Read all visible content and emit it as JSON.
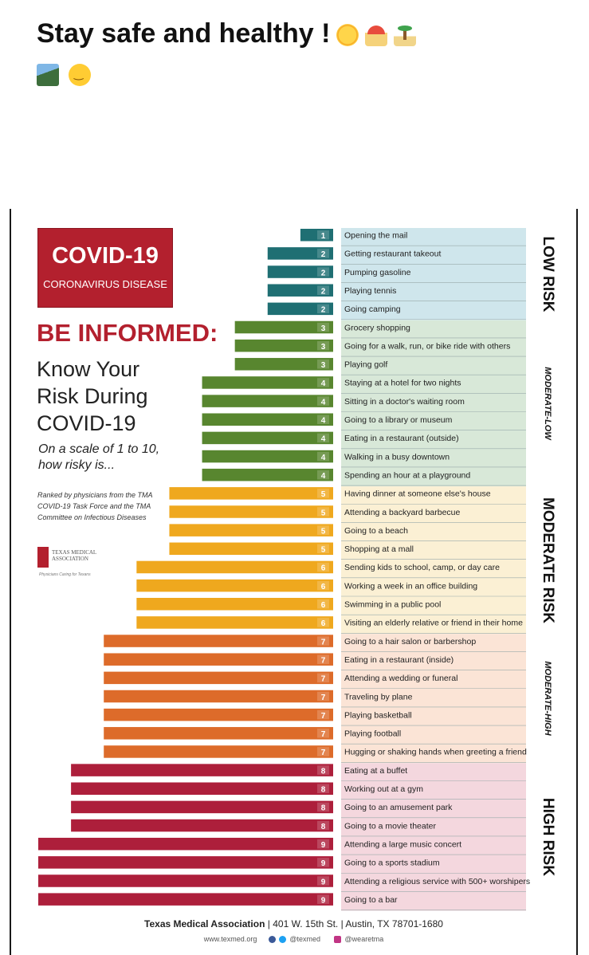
{
  "post": {
    "caption": "Stay safe and healthy !",
    "emojis": [
      "sun-emoji",
      "umbrella-on-beach-emoji",
      "palm-island-emoji",
      "mountain-photo-emoji",
      "smiling-face-emoji"
    ]
  },
  "infographic": {
    "badge_title": "COVID-19",
    "badge_subtitle": "CORONAVIRUS DISEASE",
    "headline": "BE INFORMED:",
    "subhead": "Know Your Risk During COVID-19",
    "scale_prompt": "On a scale of 1 to 10, how risky is...",
    "ranked_by": "Ranked by physicians from the TMA COVID-19 Task Force and the TMA Committee on Infectious Diseases",
    "logo_text": "TEXAS MEDICAL ASSOCIATION",
    "logo_tagline": "Physicians Caring for Texans",
    "footer": {
      "org": "Texas Medical Association",
      "address": "401 W. 15th St.",
      "city": "Austin, TX 78701-1680",
      "website": "www.texmed.org",
      "twitter": "@texmed",
      "instagram": "@wearetma"
    }
  },
  "colors": {
    "1-2": "#1f6f73",
    "3-4": "#58862f",
    "5-6": "#efa81e",
    "7": "#dd6b2a",
    "8-9": "#ad1f3b"
  },
  "chart_data": {
    "type": "bar",
    "orientation": "horizontal",
    "xlim": [
      0,
      9
    ],
    "categories": [
      "Opening the mail",
      "Getting restaurant takeout",
      "Pumping gasoline",
      "Playing tennis",
      "Going camping",
      "Grocery shopping",
      "Going for a walk, run, or bike ride with others",
      "Playing golf",
      "Staying at a hotel for two nights",
      "Sitting in a doctor's waiting room",
      "Going to a library or museum",
      "Eating in a restaurant (outside)",
      "Walking in a busy downtown",
      "Spending an hour at a playground",
      "Having dinner at someone else's house",
      "Attending a backyard barbecue",
      "Going to a beach",
      "Shopping at a mall",
      "Sending kids to school, camp, or day care",
      "Working a week in an office building",
      "Swimming in a public pool",
      "Visiting an elderly relative or friend in their home",
      "Going to a hair salon or barbershop",
      "Eating in a restaurant (inside)",
      "Attending a wedding or funeral",
      "Traveling by plane",
      "Playing basketball",
      "Playing football",
      "Hugging or shaking hands when greeting a friend",
      "Eating at a buffet",
      "Working out at a gym",
      "Going to an amusement park",
      "Going to a movie theater",
      "Attending a large music concert",
      "Going to a sports stadium",
      "Attending a religious service with 500+ worshipers",
      "Going to a bar"
    ],
    "values": [
      1,
      2,
      2,
      2,
      2,
      3,
      3,
      3,
      4,
      4,
      4,
      4,
      4,
      4,
      5,
      5,
      5,
      5,
      6,
      6,
      6,
      6,
      7,
      7,
      7,
      7,
      7,
      7,
      7,
      8,
      8,
      8,
      8,
      9,
      9,
      9,
      9
    ],
    "risk_bands": [
      {
        "label": "LOW RISK",
        "from": 0,
        "to": 4
      },
      {
        "label": "MODERATE-LOW",
        "from": 5,
        "to": 13
      },
      {
        "label": "MODERATE RISK",
        "from": 14,
        "to": 21
      },
      {
        "label": "MODERATE-HIGH",
        "from": 22,
        "to": 28
      },
      {
        "label": "HIGH RISK",
        "from": 29,
        "to": 36
      }
    ]
  }
}
